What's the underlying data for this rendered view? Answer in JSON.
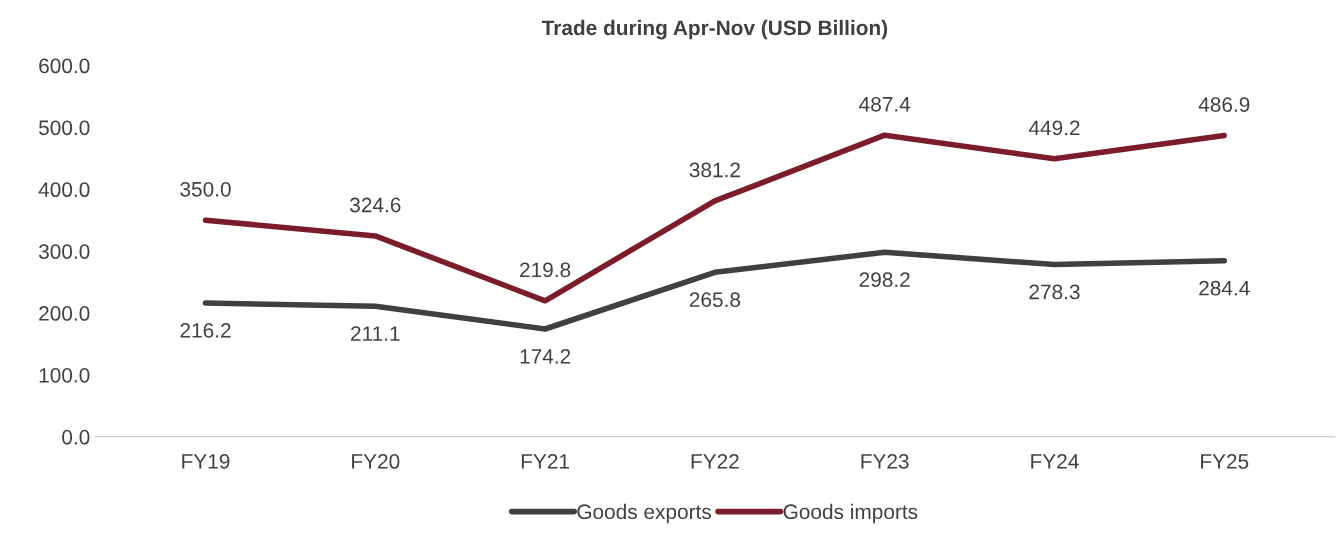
{
  "chart_data": {
    "type": "line",
    "title": "Trade during Apr-Nov (USD Billion)",
    "categories": [
      "FY19",
      "FY20",
      "FY21",
      "FY22",
      "FY23",
      "FY24",
      "FY25"
    ],
    "series": [
      {
        "name": "Goods exports",
        "color": "#404040",
        "values": [
          216.2,
          211.1,
          174.2,
          265.8,
          298.2,
          278.3,
          284.4
        ],
        "value_labels": [
          "216.2",
          "211.1",
          "174.2",
          "265.8",
          "298.2",
          "278.3",
          "284.4"
        ]
      },
      {
        "name": "Goods imports",
        "color": "#7b1c2a",
        "values": [
          350.0,
          324.6,
          219.8,
          381.2,
          487.4,
          449.2,
          486.9
        ],
        "value_labels": [
          "350.0",
          "324.6",
          "219.8",
          "381.2",
          "487.4",
          "449.2",
          "486.9"
        ]
      }
    ],
    "ylim": [
      0,
      600
    ],
    "yticks": [
      {
        "value": 0,
        "label": "0.0"
      },
      {
        "value": 100,
        "label": "100.0"
      },
      {
        "value": 200,
        "label": "200.0"
      },
      {
        "value": 300,
        "label": "300.0"
      },
      {
        "value": 400,
        "label": "400.0"
      },
      {
        "value": 500,
        "label": "500.0"
      },
      {
        "value": 600,
        "label": "600.0"
      }
    ],
    "legend": "bottom",
    "grid": false,
    "marker": "none",
    "line_style": "solid"
  }
}
